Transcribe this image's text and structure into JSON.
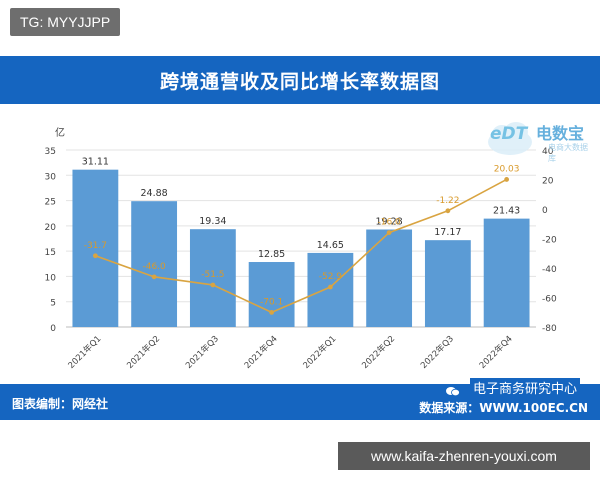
{
  "tag": "TG: MYYJJPP",
  "title": "跨境通营收及同比增长率数据图",
  "footer": {
    "editor": "图表编制：网经社",
    "source": "数据来源：WWW.100EC.CN",
    "center_name": "电子商务研究中心"
  },
  "watermark": {
    "edt": "eDT",
    "main": "电数宝",
    "sub": "电商大数据库"
  },
  "url": "www.kaifa-zhenren-youxi.com",
  "colors": {
    "bar": "#5b9bd5",
    "line": "#d9a441",
    "banner": "#1565c0"
  },
  "chart_data": {
    "type": "bar",
    "categories": [
      "2021年Q1",
      "2021年Q2",
      "2021年Q3",
      "2021年Q4",
      "2022年Q1",
      "2022年Q2",
      "2022年Q3",
      "2022年Q4"
    ],
    "series": [
      {
        "values": [
          31.11,
          24.88,
          19.34,
          12.85,
          14.65,
          19.28,
          17.17,
          21.43
        ]
      },
      {
        "values": [
          -31.7,
          -46.0,
          -51.5,
          -70.1,
          -52.9,
          -16.0,
          -1.22,
          20.03
        ]
      }
    ],
    "bar_labels": [
      "31.11",
      "24.88",
      "19.34",
      "12.85",
      "14.65",
      "19.28",
      "17.17",
      "21.43"
    ],
    "line_labels": [
      "-31.7",
      "-46.0",
      "-51.5",
      "-70.1",
      "-52.9",
      "-16.0",
      "-1.22",
      "20.03"
    ],
    "y_left_unit": "亿",
    "y_left_ticks": [
      "0",
      "5",
      "10",
      "15",
      "20",
      "25",
      "30",
      "35"
    ],
    "y_left_lim": [
      0,
      35
    ],
    "y_right_ticks": [
      "-80",
      "-60",
      "-40",
      "-20",
      "0",
      "20",
      "40"
    ],
    "y_right_lim": [
      -80,
      40
    ],
    "grid": true
  }
}
